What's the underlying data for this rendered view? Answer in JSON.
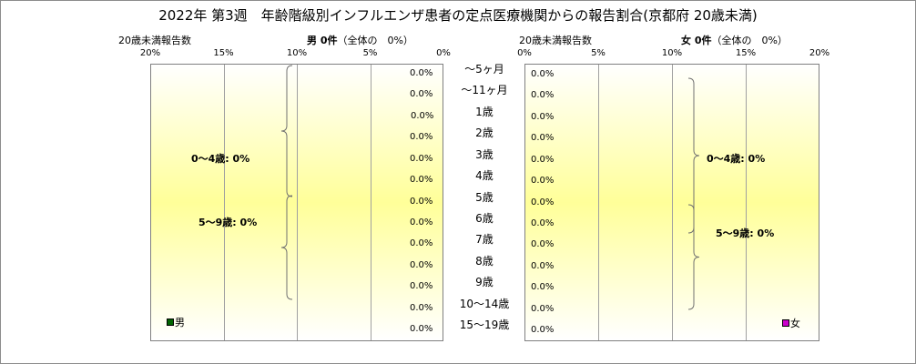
{
  "title": "2022年 第3週　年齢階級別インフルエンザ患者の定点医療機関からの報告割合(京都府 20歳未満)",
  "left_header": {
    "subtitle": "20歳未満報告数",
    "label": "男 0件",
    "total": "（全体の　0%）"
  },
  "right_header": {
    "subtitle": "20歳未満報告数",
    "label": "女 0件",
    "total": "（全体の　0%）"
  },
  "chart_data": {
    "type": "bar",
    "orientation": "horizontal-pyramid",
    "categories": [
      "～5ヶ月",
      "～11ヶ月",
      "1歳",
      "2歳",
      "3歳",
      "4歳",
      "5歳",
      "6歳",
      "7歳",
      "8歳",
      "9歳",
      "10～14歳",
      "15～19歳"
    ],
    "x_ticks_left": [
      "20%",
      "15%",
      "10%",
      "5%",
      "0%"
    ],
    "x_ticks_right": [
      "0%",
      "5%",
      "10%",
      "15%",
      "20%"
    ],
    "xlim": [
      0,
      20
    ],
    "series": [
      {
        "name": "男",
        "color": "#006400",
        "values": [
          0,
          0,
          0,
          0,
          0,
          0,
          0,
          0,
          0,
          0,
          0,
          0,
          0
        ],
        "labels": [
          "0.0%",
          "0.0%",
          "0.0%",
          "0.0%",
          "0.0%",
          "0.0%",
          "0.0%",
          "0.0%",
          "0.0%",
          "0.0%",
          "0.0%",
          "0.0%",
          "0.0%"
        ]
      },
      {
        "name": "女",
        "color": "#cc00cc",
        "values": [
          0,
          0,
          0,
          0,
          0,
          0,
          0,
          0,
          0,
          0,
          0,
          0,
          0
        ],
        "labels": [
          "0.0%",
          "0.0%",
          "0.0%",
          "0.0%",
          "0.0%",
          "0.0%",
          "0.0%",
          "0.0%",
          "0.0%",
          "0.0%",
          "0.0%",
          "0.0%",
          "0.0%"
        ]
      }
    ],
    "group_labels_left": [
      "0～4歳: 0%",
      "5～9歳: 0%"
    ],
    "group_labels_right": [
      "0～4歳: 0%",
      "5～9歳: 0%"
    ],
    "grid": true,
    "legend": "bottom"
  }
}
